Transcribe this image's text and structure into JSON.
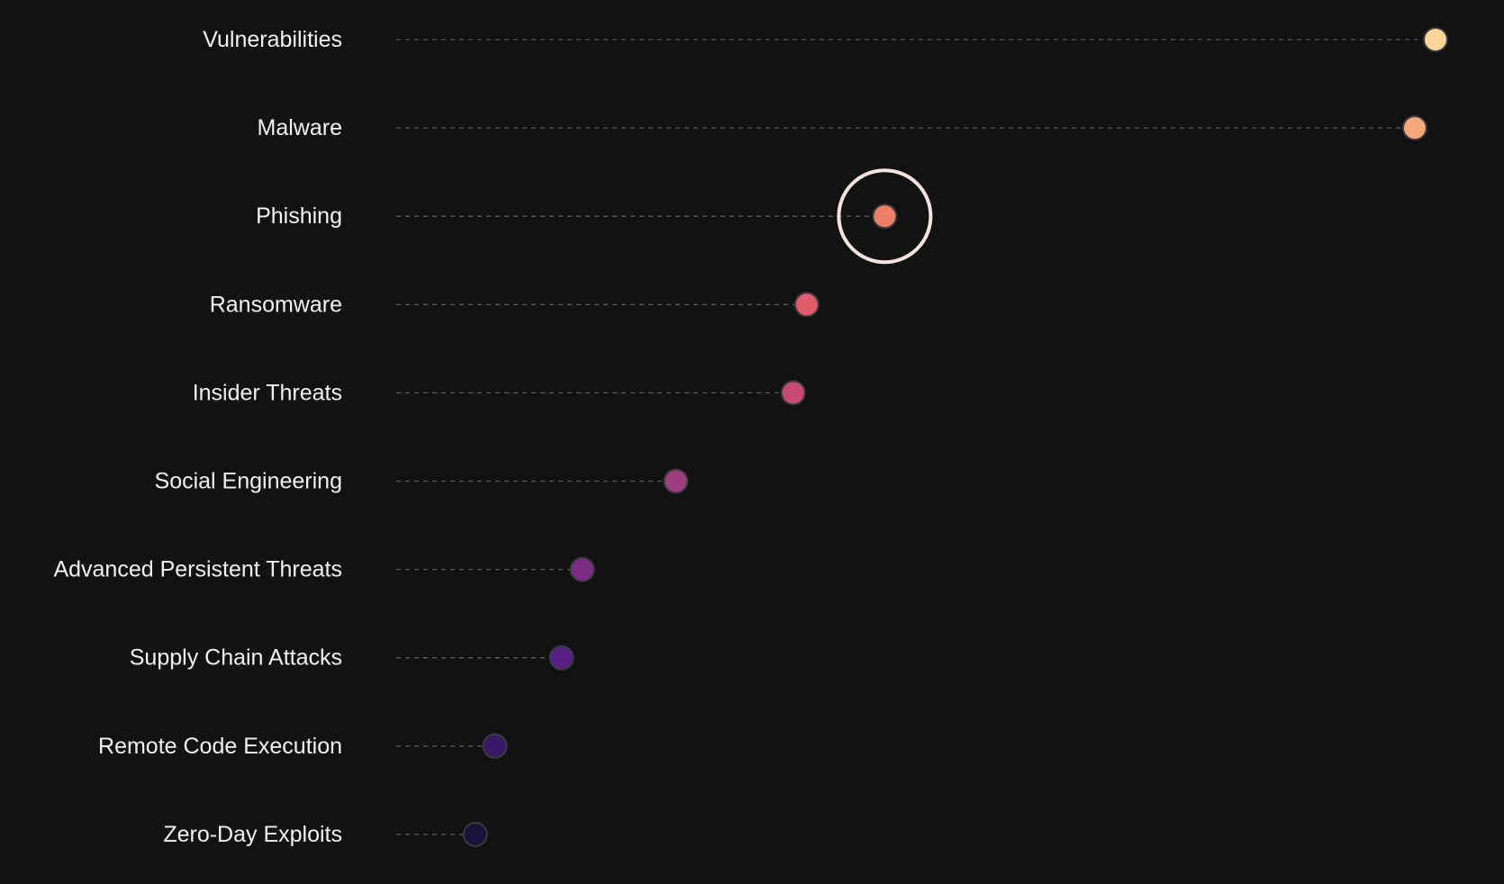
{
  "chart_data": {
    "type": "lollipop",
    "title": "",
    "xlabel": "",
    "ylabel": "",
    "categories": [
      "Vulnerabilities",
      "Malware",
      "Phishing",
      "Ransomware",
      "Insider Threats",
      "Social Engineering",
      "Advanced Persistent Threats",
      "Supply Chain Attacks",
      "Remote Code Execution",
      "Zero-Day Exploits"
    ],
    "values": [
      100,
      98,
      47,
      39.5,
      38.2,
      26.9,
      17.9,
      15.9,
      9.5,
      7.6
    ],
    "xlim": [
      0,
      100
    ],
    "highlighted_category": "Phishing",
    "grid": false,
    "legend": "none",
    "colors": [
      "#fcd59a",
      "#f6a77a",
      "#ee7f66",
      "#e05c6c",
      "#c84a74",
      "#a03c80",
      "#7b2d86",
      "#5a1f85",
      "#3a1868",
      "#1a1238"
    ],
    "background": "#121212",
    "highlight_color": "#f6e3e0"
  }
}
